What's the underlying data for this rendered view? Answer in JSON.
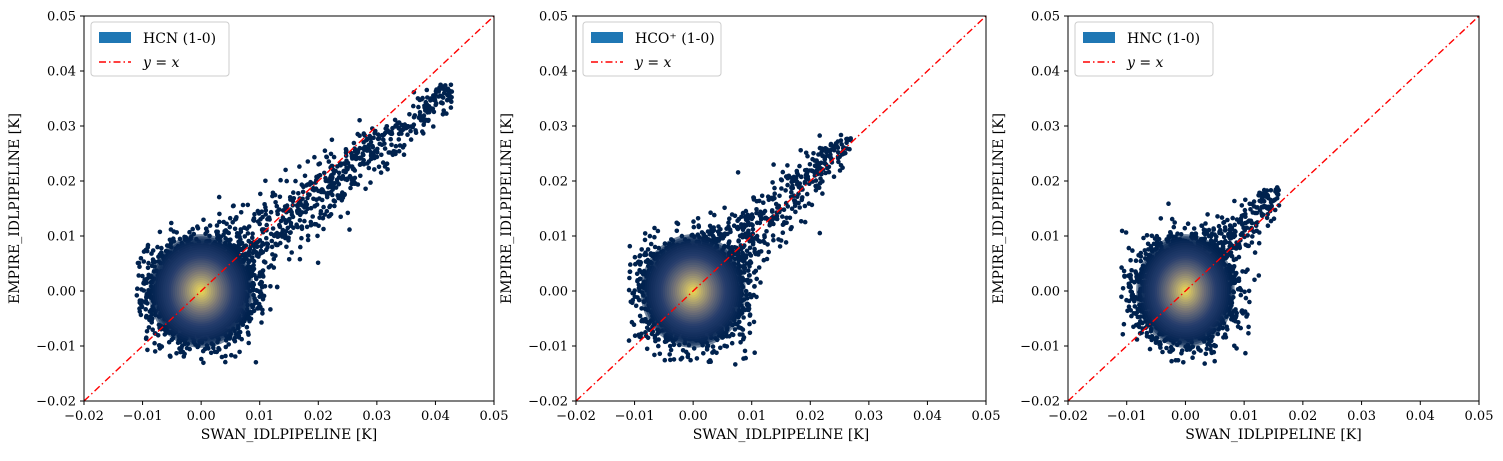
{
  "chart_data": [
    {
      "type": "scatter",
      "xlabel": "SWAN_IDLPIPELINE [K]",
      "ylabel": "EMPIRE_IDLPIPELINE [K]",
      "xlim": [
        -0.02,
        0.05
      ],
      "ylim": [
        -0.02,
        0.05
      ],
      "xticks": [
        "−0.02",
        "−0.01",
        "0.00",
        "0.01",
        "0.02",
        "0.03",
        "0.04",
        "0.05"
      ],
      "yticks": [
        "−0.02",
        "−0.01",
        "0.00",
        "0.01",
        "0.02",
        "0.03",
        "0.04",
        "0.05"
      ],
      "legend_position": "top-left",
      "series": [
        {
          "name": "HCN (1-0)",
          "kind": "density-scatter",
          "color": "#1f77b4"
        },
        {
          "name": "y = x",
          "kind": "line",
          "color": "#ff0000",
          "x": [
            -0.02,
            0.05
          ],
          "y": [
            -0.02,
            0.05
          ]
        }
      ],
      "distribution": {
        "core_x": 0.0,
        "core_y": 0.0,
        "core_sx": 0.0045,
        "core_sy": 0.0045,
        "tail_x_max": 0.043,
        "tail_y_max": 0.039
      }
    },
    {
      "type": "scatter",
      "xlabel": "SWAN_IDLPIPELINE [K]",
      "ylabel": "EMPIRE_IDLPIPELINE [K]",
      "xlim": [
        -0.02,
        0.05
      ],
      "ylim": [
        -0.02,
        0.05
      ],
      "xticks": [
        "−0.02",
        "−0.01",
        "0.00",
        "0.01",
        "0.02",
        "0.03",
        "0.04",
        "0.05"
      ],
      "yticks": [
        "−0.02",
        "−0.01",
        "0.00",
        "0.01",
        "0.02",
        "0.03",
        "0.04",
        "0.05"
      ],
      "legend_position": "top-left",
      "series": [
        {
          "name": "HCO⁺ (1-0)",
          "kind": "density-scatter",
          "color": "#1f77b4"
        },
        {
          "name": "y = x",
          "kind": "line",
          "color": "#ff0000",
          "x": [
            -0.02,
            0.05
          ],
          "y": [
            -0.02,
            0.05
          ]
        }
      ],
      "distribution": {
        "core_x": 0.0,
        "core_y": 0.0,
        "core_sx": 0.0045,
        "core_sy": 0.0045,
        "tail_x_max": 0.027,
        "tail_y_max": 0.029
      }
    },
    {
      "type": "scatter",
      "xlabel": "SWAN_IDLPIPELINE [K]",
      "ylabel": "EMPIRE_IDLPIPELINE [K]",
      "xlim": [
        -0.02,
        0.05
      ],
      "ylim": [
        -0.02,
        0.05
      ],
      "xticks": [
        "−0.02",
        "−0.01",
        "0.00",
        "0.01",
        "0.02",
        "0.03",
        "0.04",
        "0.05"
      ],
      "yticks": [
        "−0.02",
        "−0.01",
        "0.00",
        "0.01",
        "0.02",
        "0.03",
        "0.04",
        "0.05"
      ],
      "legend_position": "top-left",
      "series": [
        {
          "name": "HNC (1-0)",
          "kind": "density-scatter",
          "color": "#1f77b4"
        },
        {
          "name": "y = x",
          "kind": "line",
          "color": "#ff0000",
          "x": [
            -0.02,
            0.05
          ],
          "y": [
            -0.02,
            0.05
          ]
        }
      ],
      "distribution": {
        "core_x": 0.0,
        "core_y": 0.0,
        "core_sx": 0.0042,
        "core_sy": 0.0045,
        "tail_x_max": 0.016,
        "tail_y_max": 0.019
      }
    }
  ]
}
